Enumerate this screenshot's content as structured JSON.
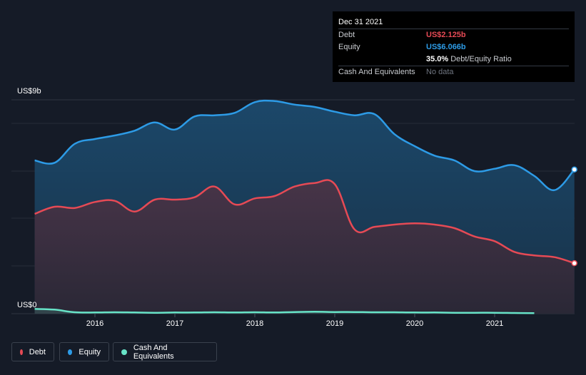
{
  "tooltip": {
    "date": "Dec 31 2021",
    "debt_label": "Debt",
    "debt_value": "US$2.125b",
    "equity_label": "Equity",
    "equity_value": "US$6.066b",
    "ratio_value": "35.0%",
    "ratio_label": "Debt/Equity Ratio",
    "cash_label": "Cash And Equivalents",
    "cash_value": "No data"
  },
  "legend": {
    "debt": "Debt",
    "equity": "Equity",
    "cash": "Cash And Equivalents"
  },
  "colors": {
    "background": "#151b27",
    "debt": "#e64a55",
    "equity": "#2d9be6",
    "cash": "#67e3c7"
  },
  "chart_data": {
    "type": "area",
    "ylim": [
      0,
      9
    ],
    "y_unit": "US$ billions",
    "y_tick_labels": {
      "top": "US$9b",
      "bottom": "US$0"
    },
    "x_tick_labels": [
      "2016",
      "2017",
      "2018",
      "2019",
      "2020",
      "2021"
    ],
    "grid": true,
    "legend_position": "bottom-left",
    "series": [
      {
        "name": "Equity",
        "color": "#2d9be6",
        "points": [
          [
            "2015-04-01",
            6.45
          ],
          [
            "2015-07-01",
            6.35
          ],
          [
            "2015-10-01",
            7.15
          ],
          [
            "2016-01-01",
            7.35
          ],
          [
            "2016-04-01",
            7.5
          ],
          [
            "2016-07-01",
            7.7
          ],
          [
            "2016-10-01",
            8.05
          ],
          [
            "2017-01-01",
            7.75
          ],
          [
            "2017-04-01",
            8.3
          ],
          [
            "2017-07-01",
            8.35
          ],
          [
            "2017-10-01",
            8.45
          ],
          [
            "2018-01-01",
            8.9
          ],
          [
            "2018-04-01",
            8.95
          ],
          [
            "2018-07-01",
            8.8
          ],
          [
            "2018-10-01",
            8.7
          ],
          [
            "2019-01-01",
            8.5
          ],
          [
            "2019-04-01",
            8.35
          ],
          [
            "2019-07-01",
            8.4
          ],
          [
            "2019-10-01",
            7.55
          ],
          [
            "2020-01-01",
            7.05
          ],
          [
            "2020-04-01",
            6.65
          ],
          [
            "2020-07-01",
            6.45
          ],
          [
            "2020-10-01",
            6.0
          ],
          [
            "2021-01-01",
            6.1
          ],
          [
            "2021-04-01",
            6.25
          ],
          [
            "2021-07-01",
            5.8
          ],
          [
            "2021-10-01",
            5.2
          ],
          [
            "2021-12-31",
            6.066
          ]
        ]
      },
      {
        "name": "Debt",
        "color": "#e64a55",
        "points": [
          [
            "2015-04-01",
            4.2
          ],
          [
            "2015-07-01",
            4.5
          ],
          [
            "2015-10-01",
            4.45
          ],
          [
            "2016-01-01",
            4.7
          ],
          [
            "2016-04-01",
            4.75
          ],
          [
            "2016-07-01",
            4.3
          ],
          [
            "2016-10-01",
            4.8
          ],
          [
            "2017-01-01",
            4.8
          ],
          [
            "2017-04-01",
            4.9
          ],
          [
            "2017-07-01",
            5.35
          ],
          [
            "2017-10-01",
            4.6
          ],
          [
            "2018-01-01",
            4.85
          ],
          [
            "2018-04-01",
            4.95
          ],
          [
            "2018-07-01",
            5.35
          ],
          [
            "2018-10-01",
            5.5
          ],
          [
            "2019-01-01",
            5.45
          ],
          [
            "2019-04-01",
            3.55
          ],
          [
            "2019-07-01",
            3.65
          ],
          [
            "2019-10-01",
            3.75
          ],
          [
            "2020-01-01",
            3.8
          ],
          [
            "2020-04-01",
            3.75
          ],
          [
            "2020-07-01",
            3.6
          ],
          [
            "2020-10-01",
            3.25
          ],
          [
            "2021-01-01",
            3.05
          ],
          [
            "2021-04-01",
            2.6
          ],
          [
            "2021-07-01",
            2.45
          ],
          [
            "2021-10-01",
            2.38
          ],
          [
            "2021-12-31",
            2.125
          ]
        ]
      },
      {
        "name": "Cash And Equivalents",
        "color": "#67e3c7",
        "points": [
          [
            "2015-04-01",
            0.2
          ],
          [
            "2015-07-01",
            0.17
          ],
          [
            "2015-10-01",
            0.06
          ],
          [
            "2016-01-01",
            0.05
          ],
          [
            "2016-04-01",
            0.06
          ],
          [
            "2016-07-01",
            0.05
          ],
          [
            "2016-10-01",
            0.04
          ],
          [
            "2017-01-01",
            0.05
          ],
          [
            "2017-04-01",
            0.05
          ],
          [
            "2017-07-01",
            0.06
          ],
          [
            "2017-10-01",
            0.05
          ],
          [
            "2018-01-01",
            0.06
          ],
          [
            "2018-04-01",
            0.05
          ],
          [
            "2018-07-01",
            0.07
          ],
          [
            "2018-10-01",
            0.08
          ],
          [
            "2019-01-01",
            0.07
          ],
          [
            "2019-04-01",
            0.07
          ],
          [
            "2019-07-01",
            0.06
          ],
          [
            "2019-10-01",
            0.06
          ],
          [
            "2020-01-01",
            0.05
          ],
          [
            "2020-04-01",
            0.05
          ],
          [
            "2020-07-01",
            0.04
          ],
          [
            "2020-10-01",
            0.04
          ],
          [
            "2021-01-01",
            0.04
          ],
          [
            "2021-04-01",
            0.03
          ],
          [
            "2021-07-01",
            0.02
          ]
        ]
      }
    ]
  }
}
